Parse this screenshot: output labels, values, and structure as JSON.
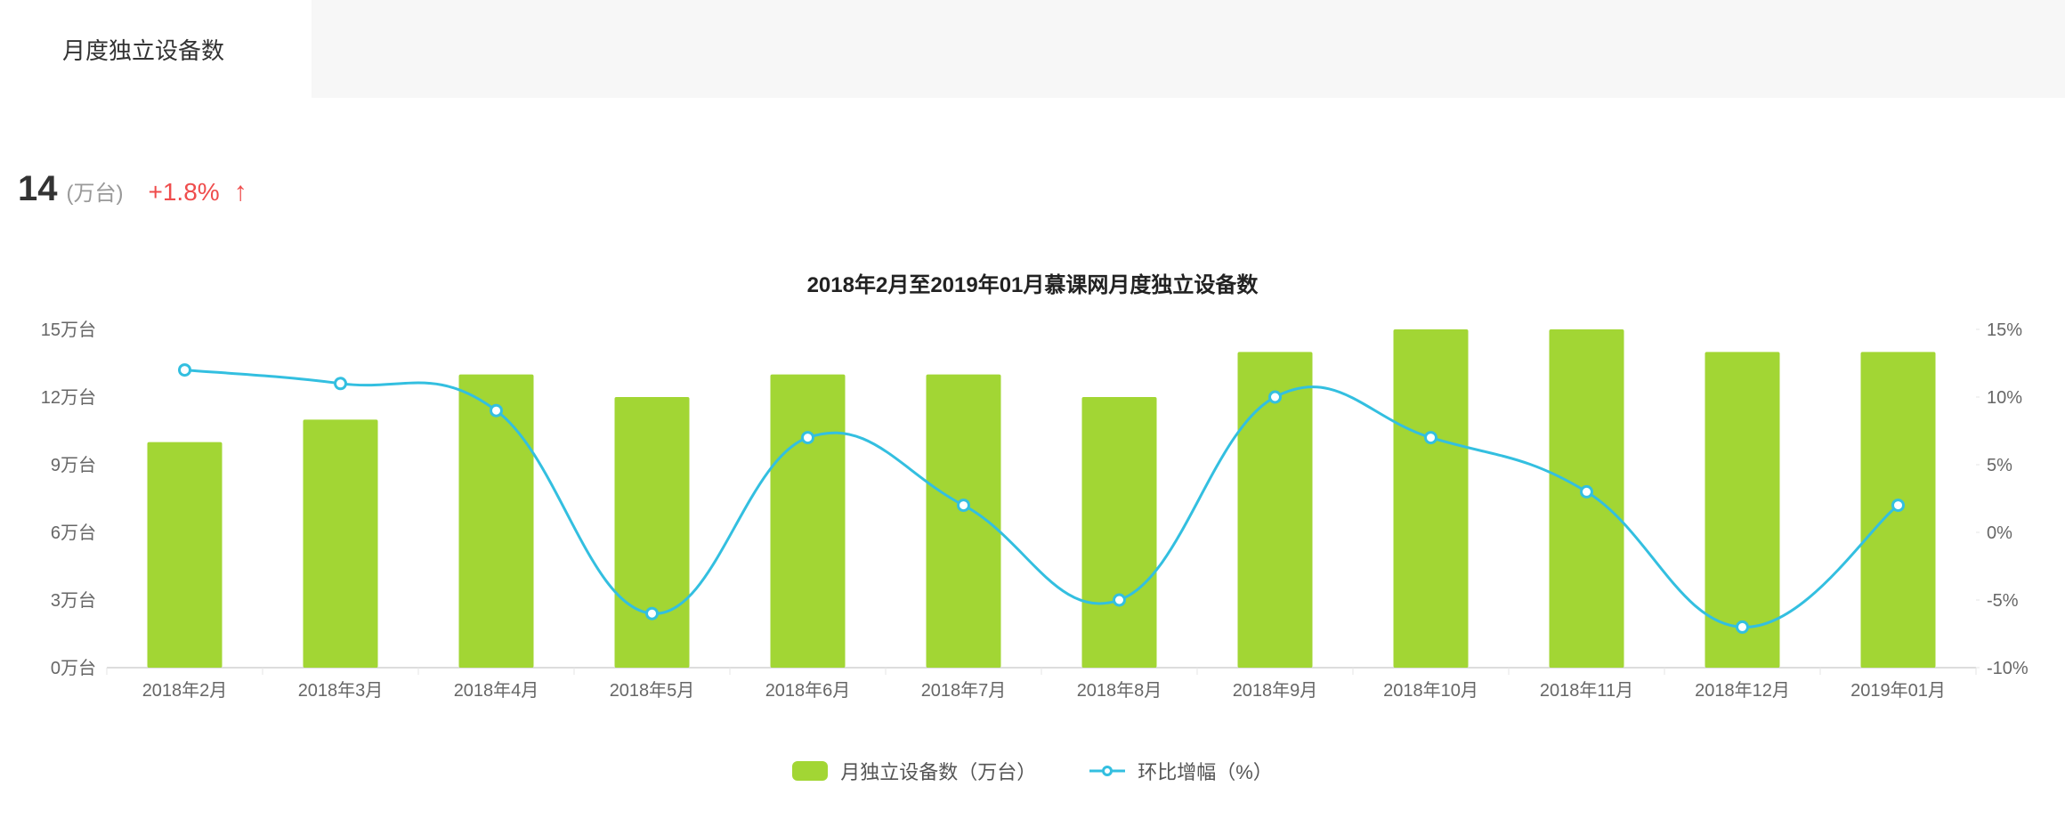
{
  "tab": {
    "label": "月度独立设备数"
  },
  "summary": {
    "value": "14",
    "unit": "(万台)",
    "delta": "+1.8%",
    "delta_color": "#ef4c4c",
    "arrow": "↑"
  },
  "chart": {
    "title": "2018年2月至2019年01月慕课网月度独立设备数",
    "categories": [
      "2018年2月",
      "2018年3月",
      "2018年4月",
      "2018年5月",
      "2018年6月",
      "2018年7月",
      "2018年8月",
      "2018年9月",
      "2018年10月",
      "2018年11月",
      "2018年12月",
      "2019年01月"
    ],
    "bars": {
      "label": "月独立设备数（万台）",
      "values": [
        10,
        11,
        13,
        12,
        13,
        13,
        12,
        14,
        15,
        15,
        14,
        14
      ],
      "color": "#a2d634",
      "bar_width_ratio": 0.48
    },
    "line": {
      "label": "环比增幅（%）",
      "values": [
        12,
        11,
        9,
        -6,
        7,
        2,
        -5,
        10,
        7,
        3,
        -7,
        2
      ],
      "color": "#33bfe0",
      "marker_fill": "#ffffff",
      "marker_stroke": "#33bfe0",
      "marker_radius": 6,
      "stroke_width": 3
    },
    "y_left": {
      "min": 0,
      "max": 15,
      "step": 3,
      "unit_suffix": "万台"
    },
    "y_right": {
      "min": -10,
      "max": 15,
      "step": 5,
      "unit_suffix": "%"
    },
    "background_color": "#ffffff",
    "axis_text_color": "#666666",
    "tick_color": "#e5e5e5",
    "baseline_color": "#bbbbbb",
    "title_fontsize": 24,
    "axis_fontsize": 20
  }
}
